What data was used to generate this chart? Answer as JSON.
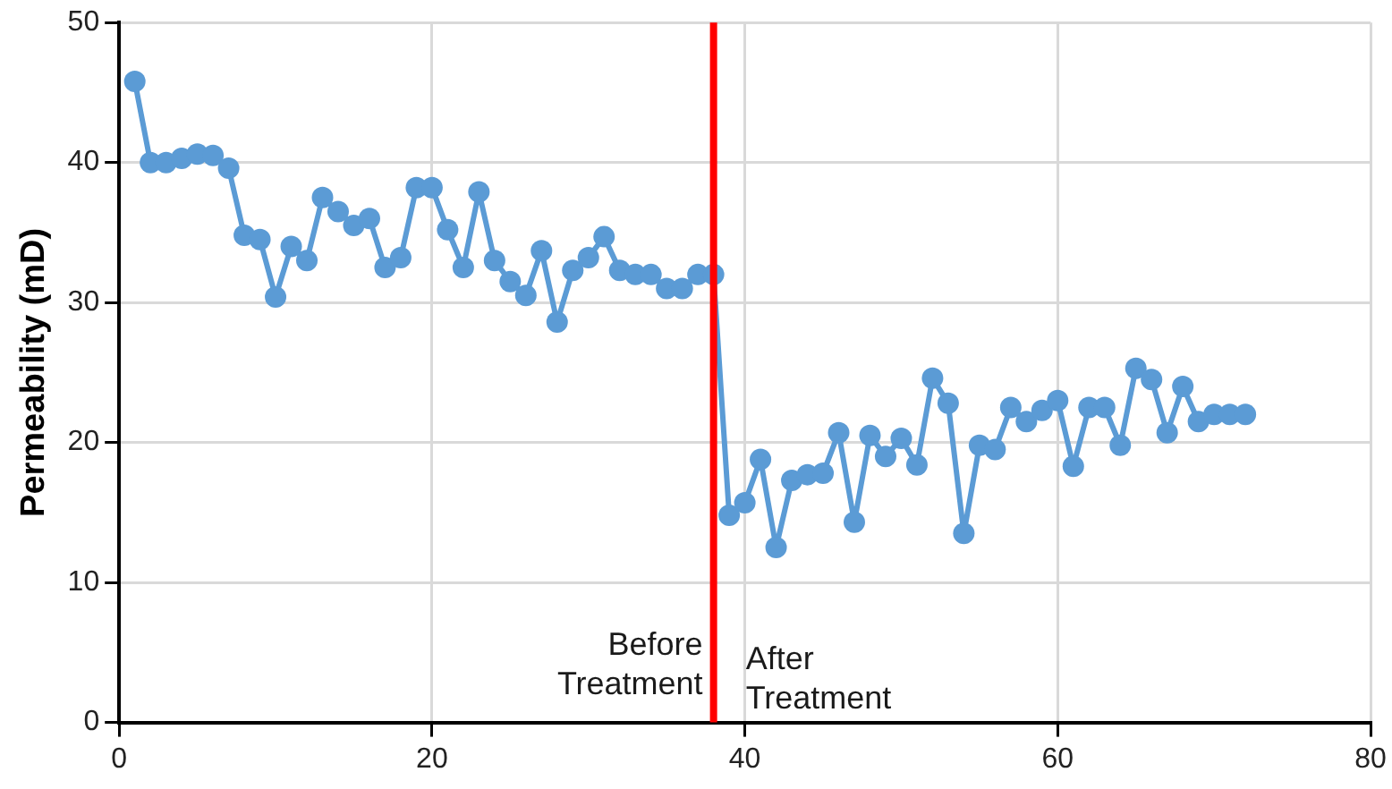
{
  "chart_data": {
    "type": "line",
    "ylabel": "Permeability (mD)",
    "x": [
      1,
      2,
      3,
      4,
      5,
      6,
      7,
      8,
      9,
      10,
      11,
      12,
      13,
      14,
      15,
      16,
      17,
      18,
      19,
      20,
      21,
      22,
      23,
      24,
      25,
      26,
      27,
      28,
      29,
      30,
      31,
      32,
      33,
      34,
      35,
      36,
      37,
      38,
      39,
      40,
      41,
      42,
      43,
      44,
      45,
      46,
      47,
      48,
      49,
      50,
      51,
      52,
      53,
      54,
      55,
      56,
      57,
      58,
      59,
      60,
      61,
      62,
      63,
      64,
      65,
      66,
      67,
      68,
      69,
      70,
      71,
      72
    ],
    "series": [
      {
        "color": "#5b9bd5",
        "values": [
          45.8,
          40,
          40,
          40.3,
          40.6,
          40.5,
          39.6,
          34.8,
          34.5,
          30.4,
          34,
          33,
          37.5,
          36.5,
          35.5,
          36,
          32.5,
          33.2,
          38.2,
          38.2,
          35.2,
          32.5,
          37.9,
          33,
          31.5,
          30.5,
          33.7,
          28.6,
          32.3,
          33.2,
          34.7,
          32.3,
          32,
          32,
          31,
          31,
          32,
          32,
          14.8,
          15.7,
          18.8,
          12.5,
          17.3,
          17.7,
          17.8,
          20.7,
          14.3,
          20.5,
          19,
          20.3,
          18.4,
          24.6,
          22.8,
          13.5,
          19.8,
          19.5,
          22.5,
          21.5,
          22.3,
          23,
          18.3,
          22.5,
          22.5,
          19.8,
          25.3,
          24.5,
          20.7,
          24,
          21.5,
          22,
          22,
          22
        ]
      }
    ],
    "xlim": [
      0,
      80
    ],
    "xticks": [
      0,
      20,
      40,
      60,
      80
    ],
    "ylim": [
      0,
      50
    ],
    "yticks": [
      0,
      10,
      20,
      30,
      40,
      50
    ],
    "grid": true,
    "legend": false,
    "marker": "circle",
    "line_style": "solid",
    "ref_lines": [
      {
        "axis": "x",
        "value": 38,
        "color": "#ff0000"
      }
    ],
    "annotations": [
      "Before\nTreatment",
      "After\nTreatment"
    ]
  }
}
